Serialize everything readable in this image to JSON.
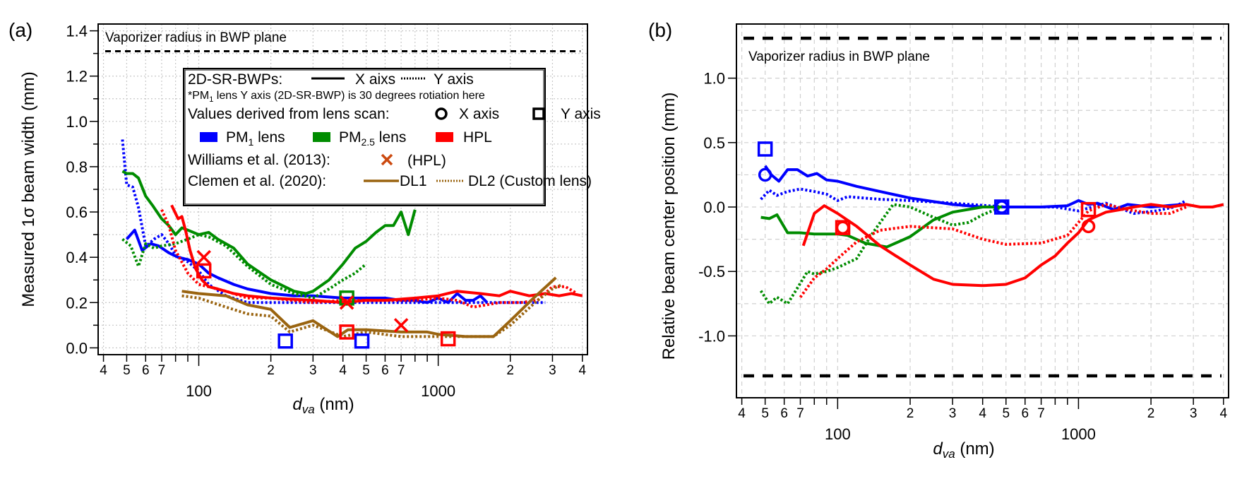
{
  "chart_data": [
    {
      "id": "a",
      "type": "line",
      "panel_label": "(a)",
      "xlabel_italic": "d",
      "xlabel_sub": "va",
      "xlabel_unit": " (nm)",
      "ylabel": "Measured 1σ  beam width (mm)",
      "xscale": "log",
      "xlim": [
        38,
        4200
      ],
      "ylim": [
        -0.03,
        1.43
      ],
      "grid": true,
      "yticks": [
        0.0,
        0.2,
        0.4,
        0.6,
        0.8,
        1.0,
        1.2,
        1.4
      ],
      "ytick_labels": [
        "0.0",
        "0.2",
        "0.4",
        "0.6",
        "0.8",
        "1.0",
        "1.2",
        "1.4"
      ],
      "xtick_major": [
        100,
        1000
      ],
      "xtick_major_labels": [
        "100",
        "1000"
      ],
      "xtick_minor": [
        40,
        50,
        60,
        70,
        80,
        90,
        200,
        300,
        400,
        500,
        600,
        700,
        800,
        900,
        2000,
        3000,
        4000
      ],
      "xtick_minor_labels": [
        "4",
        "5",
        "6",
        "7",
        "",
        "",
        "2",
        "3",
        "4",
        "5",
        "6",
        "7",
        "",
        "",
        "2",
        "3",
        "4"
      ],
      "reference_line": {
        "label": "Vaporizer radius in BWP plane",
        "y": 1.31
      },
      "legend": {
        "placement": "top-right",
        "row1_title": "2D-SR-BWPs:",
        "row1_solid": "X aixs",
        "row1_dotted": "Y axis",
        "note_prefix": "*PM",
        "note_sub": "1",
        "note_suffix": " lens Y axis (2D-SR-BWP) is 30 degrees rotiation here",
        "row3_title": "Values derived from lens scan:",
        "row3_circle": "X axis",
        "row3_square": "Y axis",
        "lens_entries": [
          {
            "prefix": "PM",
            "sub": "1",
            "suffix": " lens",
            "color": "#0000ff"
          },
          {
            "prefix": "PM",
            "sub": "2.5",
            "suffix": " lens",
            "color": "#008c00"
          },
          {
            "prefix": "HPL",
            "sub": "",
            "suffix": "",
            "color": "#ff0000"
          }
        ],
        "williams_title": "Williams et al. (2013):",
        "williams_label": "(HPL)",
        "williams_color": "#cc4a10",
        "clemen_title": "Clemen et al. (2020):",
        "clemen_solid": "DL1",
        "clemen_dotted": "DL2 (Custom lens)"
      },
      "series": [
        {
          "name": "PM1 lens X",
          "color": "#0000ff",
          "style": "solid",
          "x": [
            50,
            54,
            58,
            63,
            68,
            75,
            82,
            90,
            100,
            110,
            120,
            140,
            160,
            200,
            250,
            300,
            400,
            500,
            600,
            700,
            800,
            900,
            1000,
            1100,
            1200,
            1300,
            1400,
            1500,
            1600
          ],
          "y": [
            0.48,
            0.52,
            0.43,
            0.46,
            0.45,
            0.42,
            0.4,
            0.39,
            0.37,
            0.33,
            0.31,
            0.28,
            0.26,
            0.24,
            0.23,
            0.23,
            0.22,
            0.22,
            0.22,
            0.21,
            0.21,
            0.2,
            0.22,
            0.2,
            0.24,
            0.21,
            0.21,
            0.23,
            0.2
          ]
        },
        {
          "name": "PM1 lens Y",
          "color": "#0000ff",
          "style": "dotted",
          "x": [
            48,
            50,
            53,
            56,
            60,
            62,
            65,
            70,
            75,
            80,
            90,
            100,
            110,
            130,
            160,
            200,
            300,
            500,
            800,
            1000,
            1500,
            2000,
            2800
          ],
          "y": [
            0.92,
            0.72,
            0.71,
            0.62,
            0.45,
            0.46,
            0.48,
            0.5,
            0.46,
            0.41,
            0.38,
            0.34,
            0.28,
            0.23,
            0.2,
            0.2,
            0.2,
            0.2,
            0.2,
            0.2,
            0.2,
            0.2,
            0.2
          ]
        },
        {
          "name": "PM2.5 lens X",
          "color": "#008c00",
          "style": "solid",
          "x": [
            48,
            50,
            53,
            56,
            60,
            64,
            70,
            75,
            80,
            85,
            90,
            100,
            110,
            120,
            140,
            160,
            200,
            250,
            280,
            300,
            350,
            400,
            450,
            500,
            550,
            600,
            650,
            700,
            750,
            800
          ],
          "y": [
            0.78,
            0.77,
            0.77,
            0.75,
            0.67,
            0.63,
            0.57,
            0.54,
            0.5,
            0.53,
            0.52,
            0.5,
            0.51,
            0.48,
            0.44,
            0.37,
            0.3,
            0.25,
            0.24,
            0.25,
            0.3,
            0.37,
            0.44,
            0.47,
            0.51,
            0.54,
            0.54,
            0.6,
            0.5,
            0.61
          ]
        },
        {
          "name": "PM2.5 lens Y",
          "color": "#008c00",
          "style": "dotted",
          "x": [
            48,
            52,
            56,
            60,
            65,
            70,
            80,
            90,
            100,
            110,
            130,
            160,
            200,
            250,
            300,
            350,
            400,
            450,
            500
          ],
          "y": [
            0.48,
            0.45,
            0.36,
            0.46,
            0.44,
            0.45,
            0.46,
            0.48,
            0.5,
            0.49,
            0.45,
            0.36,
            0.28,
            0.24,
            0.22,
            0.26,
            0.3,
            0.33,
            0.37
          ]
        },
        {
          "name": "HPL X",
          "color": "#ff0000",
          "style": "solid",
          "x": [
            77,
            82,
            85,
            88,
            92,
            97,
            103,
            110,
            120,
            140,
            160,
            200,
            300,
            400,
            500,
            600,
            800,
            1000,
            1200,
            1500,
            1800,
            2000,
            2400,
            2800,
            3200,
            3600,
            4000
          ],
          "y": [
            0.63,
            0.57,
            0.58,
            0.52,
            0.43,
            0.35,
            0.3,
            0.27,
            0.26,
            0.24,
            0.23,
            0.22,
            0.21,
            0.2,
            0.21,
            0.21,
            0.22,
            0.23,
            0.25,
            0.24,
            0.23,
            0.25,
            0.23,
            0.24,
            0.23,
            0.24,
            0.23
          ]
        },
        {
          "name": "HPL Y",
          "color": "#ff0000",
          "style": "dotted",
          "x": [
            70,
            75,
            80,
            90,
            100,
            110,
            130,
            160,
            200,
            300,
            400,
            500,
            600,
            800,
            1000,
            1200,
            1400,
            1800,
            2200,
            2600,
            3000,
            3400,
            3800
          ],
          "y": [
            0.61,
            0.54,
            0.43,
            0.33,
            0.28,
            0.27,
            0.25,
            0.22,
            0.22,
            0.2,
            0.21,
            0.21,
            0.21,
            0.21,
            0.22,
            0.21,
            0.18,
            0.2,
            0.2,
            0.21,
            0.27,
            0.27,
            0.24
          ]
        },
        {
          "name": "Clemen DL1",
          "color": "#9a6410",
          "style": "solid",
          "x": [
            85,
            100,
            130,
            160,
            200,
            240,
            300,
            380,
            420,
            500,
            700,
            900,
            1000,
            1300,
            1700,
            2000,
            2500,
            3100
          ],
          "y": [
            0.25,
            0.24,
            0.23,
            0.19,
            0.17,
            0.09,
            0.12,
            0.05,
            0.08,
            0.08,
            0.07,
            0.07,
            0.06,
            0.05,
            0.05,
            0.12,
            0.22,
            0.31
          ]
        },
        {
          "name": "Clemen DL2",
          "color": "#9a6410",
          "style": "dotted",
          "x": [
            85,
            100,
            130,
            160,
            200,
            240,
            300,
            400,
            500,
            700,
            900,
            1200,
            1700,
            2000,
            2600,
            3000,
            3300
          ],
          "y": [
            0.23,
            0.22,
            0.18,
            0.15,
            0.14,
            0.07,
            0.1,
            0.05,
            0.07,
            0.05,
            0.05,
            0.05,
            0.05,
            0.1,
            0.21,
            0.26,
            0.28
          ]
        }
      ],
      "markers": [
        {
          "kind": "square",
          "color": "#0000ff",
          "x": [
            230,
            480
          ],
          "y": [
            0.03,
            0.03
          ]
        },
        {
          "kind": "square",
          "color": "#008c00",
          "x": [
            415
          ],
          "y": [
            0.22
          ]
        },
        {
          "kind": "square",
          "color": "#ff0000",
          "x": [
            105,
            415,
            1100
          ],
          "y": [
            0.34,
            0.07,
            0.04
          ]
        },
        {
          "kind": "cross",
          "color": "#ff0000",
          "x": [
            105,
            415,
            700
          ],
          "y": [
            0.4,
            0.2,
            0.1
          ]
        }
      ]
    },
    {
      "id": "b",
      "type": "line",
      "panel_label": "(b)",
      "xlabel_italic": "d",
      "xlabel_sub": "va",
      "xlabel_unit": " (nm)",
      "ylabel": "Relative beam center position (mm)",
      "xscale": "log",
      "xlim": [
        38,
        4200
      ],
      "ylim": [
        -1.48,
        1.42
      ],
      "grid": true,
      "yticks": [
        -1.0,
        -0.5,
        0.0,
        0.5,
        1.0
      ],
      "ytick_labels": [
        "-1.0",
        "-0.5",
        "0.0",
        "0.5",
        "1.0"
      ],
      "xtick_major": [
        100,
        1000
      ],
      "xtick_major_labels": [
        "100",
        "1000"
      ],
      "xtick_minor": [
        40,
        50,
        60,
        70,
        80,
        90,
        200,
        300,
        400,
        500,
        600,
        700,
        800,
        900,
        2000,
        3000,
        4000
      ],
      "xtick_minor_labels": [
        "4",
        "5",
        "6",
        "7",
        "",
        "",
        "2",
        "3",
        "4",
        "5",
        "6",
        "7",
        "",
        "",
        "2",
        "3",
        "4"
      ],
      "reference_lines": [
        {
          "label": "Vaporizer radius in BWP plane",
          "y": 1.31
        },
        {
          "label": "",
          "y": -1.31
        }
      ],
      "series": [
        {
          "name": "PM1 lens X",
          "color": "#0000ff",
          "style": "solid",
          "x": [
            50,
            53,
            57,
            62,
            68,
            75,
            82,
            90,
            100,
            120,
            150,
            200,
            300,
            400,
            500,
            700,
            900,
            1000,
            1100,
            1200,
            1400,
            1600,
            2000,
            2700
          ],
          "y": [
            0.32,
            0.25,
            0.2,
            0.29,
            0.29,
            0.24,
            0.26,
            0.21,
            0.2,
            0.16,
            0.12,
            0.07,
            0.02,
            0.0,
            0.0,
            0.0,
            0.01,
            0.05,
            0.02,
            0.03,
            -0.02,
            0.02,
            0.0,
            0.02
          ]
        },
        {
          "name": "PM1 lens Y",
          "color": "#0000ff",
          "style": "dotted",
          "x": [
            48,
            52,
            56,
            62,
            70,
            80,
            90,
            100,
            110,
            150,
            200,
            300,
            500,
            800,
            1000,
            1300,
            1700,
            2100,
            2500,
            2800
          ],
          "y": [
            0.06,
            0.13,
            0.09,
            0.12,
            0.14,
            0.12,
            0.1,
            0.05,
            0.08,
            0.06,
            0.05,
            0.03,
            0.0,
            0.0,
            -0.03,
            0.03,
            -0.05,
            -0.03,
            0.0,
            0.05
          ]
        },
        {
          "name": "PM2.5 lens X",
          "color": "#008c00",
          "style": "solid",
          "x": [
            48,
            52,
            56,
            62,
            70,
            80,
            90,
            100,
            110,
            130,
            160,
            200,
            250,
            300,
            400,
            480
          ],
          "y": [
            -0.08,
            -0.09,
            -0.06,
            -0.2,
            -0.2,
            -0.21,
            -0.21,
            -0.21,
            -0.22,
            -0.28,
            -0.31,
            -0.23,
            -0.1,
            -0.04,
            0.0,
            0.0
          ]
        },
        {
          "name": "PM2.5 lens Y",
          "color": "#008c00",
          "style": "dotted",
          "x": [
            48,
            52,
            56,
            62,
            68,
            75,
            80,
            90,
            100,
            120,
            140,
            170,
            200,
            250,
            300,
            350,
            400,
            480
          ],
          "y": [
            -0.65,
            -0.75,
            -0.7,
            -0.75,
            -0.63,
            -0.5,
            -0.52,
            -0.5,
            -0.47,
            -0.4,
            -0.2,
            0.02,
            0.0,
            -0.08,
            -0.14,
            -0.12,
            -0.06,
            0.0
          ]
        },
        {
          "name": "HPL X",
          "color": "#ff0000",
          "style": "solid",
          "x": [
            72,
            80,
            88,
            100,
            120,
            150,
            200,
            250,
            300,
            400,
            500,
            600,
            700,
            800,
            900,
            1000,
            1100,
            1300,
            1500,
            1700,
            2000,
            2400,
            2800,
            3200,
            3600,
            4000
          ],
          "y": [
            -0.3,
            -0.05,
            0.01,
            -0.05,
            -0.15,
            -0.3,
            -0.45,
            -0.56,
            -0.6,
            -0.61,
            -0.6,
            -0.55,
            -0.45,
            -0.38,
            -0.28,
            -0.2,
            -0.1,
            -0.04,
            -0.02,
            0.0,
            0.02,
            0.0,
            0.02,
            0.0,
            0.0,
            0.02
          ]
        },
        {
          "name": "HPL Y",
          "color": "#ff0000",
          "style": "dotted",
          "x": [
            70,
            80,
            90,
            100,
            120,
            150,
            200,
            300,
            400,
            500,
            700,
            900,
            1000,
            1100,
            1300,
            1600,
            2000,
            2400,
            2800
          ],
          "y": [
            -0.7,
            -0.55,
            -0.48,
            -0.4,
            -0.27,
            -0.18,
            -0.15,
            -0.17,
            -0.25,
            -0.29,
            -0.28,
            -0.22,
            -0.12,
            -0.03,
            0.02,
            -0.02,
            -0.05,
            -0.05,
            0.0
          ]
        }
      ],
      "markers": [
        {
          "kind": "square",
          "color": "#0000ff",
          "x": [
            50,
            480
          ],
          "y": [
            0.45,
            0.0
          ]
        },
        {
          "kind": "circle",
          "color": "#0000ff",
          "x": [
            50,
            480
          ],
          "y": [
            0.25,
            0.0
          ]
        },
        {
          "kind": "square",
          "color": "#ff0000",
          "x": [
            105,
            1100
          ],
          "y": [
            -0.16,
            -0.02
          ]
        },
        {
          "kind": "circle",
          "color": "#ff0000",
          "x": [
            105,
            1100
          ],
          "y": [
            -0.16,
            -0.15
          ]
        }
      ]
    }
  ]
}
